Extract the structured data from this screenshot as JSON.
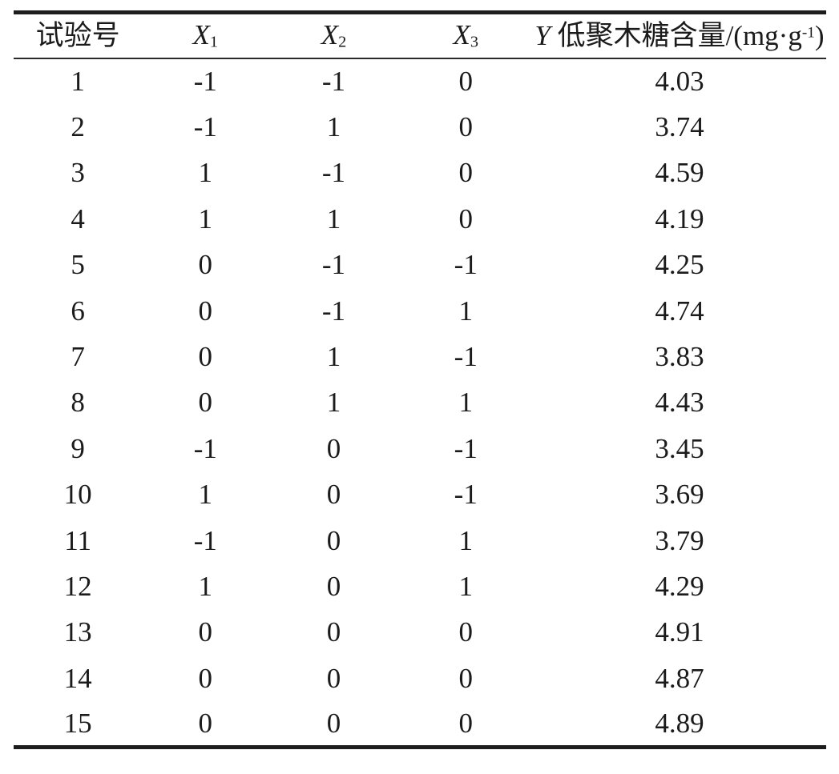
{
  "page": {
    "background": "#ffffff",
    "text_color": "#1b1b1b",
    "rule_color": "#1d1d1d"
  },
  "table": {
    "header": {
      "run_label": "试验号",
      "x1_base": "X",
      "x1_sub": "1",
      "x2_base": "X",
      "x2_sub": "2",
      "x3_base": "X",
      "x3_sub": "3",
      "y_var": "Y",
      "y_text": " 低聚木糖含量/(mg·g",
      "y_sup": "-1",
      "y_close": ")"
    },
    "col_keys": [
      "run",
      "x1",
      "x2",
      "x3",
      "y"
    ],
    "rows": [
      [
        "1",
        "-1",
        "-1",
        "0",
        "4.03"
      ],
      [
        "2",
        "-1",
        "1",
        "0",
        "3.74"
      ],
      [
        "3",
        "1",
        "-1",
        "0",
        "4.59"
      ],
      [
        "4",
        "1",
        "1",
        "0",
        "4.19"
      ],
      [
        "5",
        "0",
        "-1",
        "-1",
        "4.25"
      ],
      [
        "6",
        "0",
        "-1",
        "1",
        "4.74"
      ],
      [
        "7",
        "0",
        "1",
        "-1",
        "3.83"
      ],
      [
        "8",
        "0",
        "1",
        "1",
        "4.43"
      ],
      [
        "9",
        "-1",
        "0",
        "-1",
        "3.45"
      ],
      [
        "10",
        "1",
        "0",
        "-1",
        "3.69"
      ],
      [
        "11",
        "-1",
        "0",
        "1",
        "3.79"
      ],
      [
        "12",
        "1",
        "0",
        "1",
        "4.29"
      ],
      [
        "13",
        "0",
        "0",
        "0",
        "4.91"
      ],
      [
        "14",
        "0",
        "0",
        "0",
        "4.87"
      ],
      [
        "15",
        "0",
        "0",
        "0",
        "4.89"
      ]
    ]
  }
}
